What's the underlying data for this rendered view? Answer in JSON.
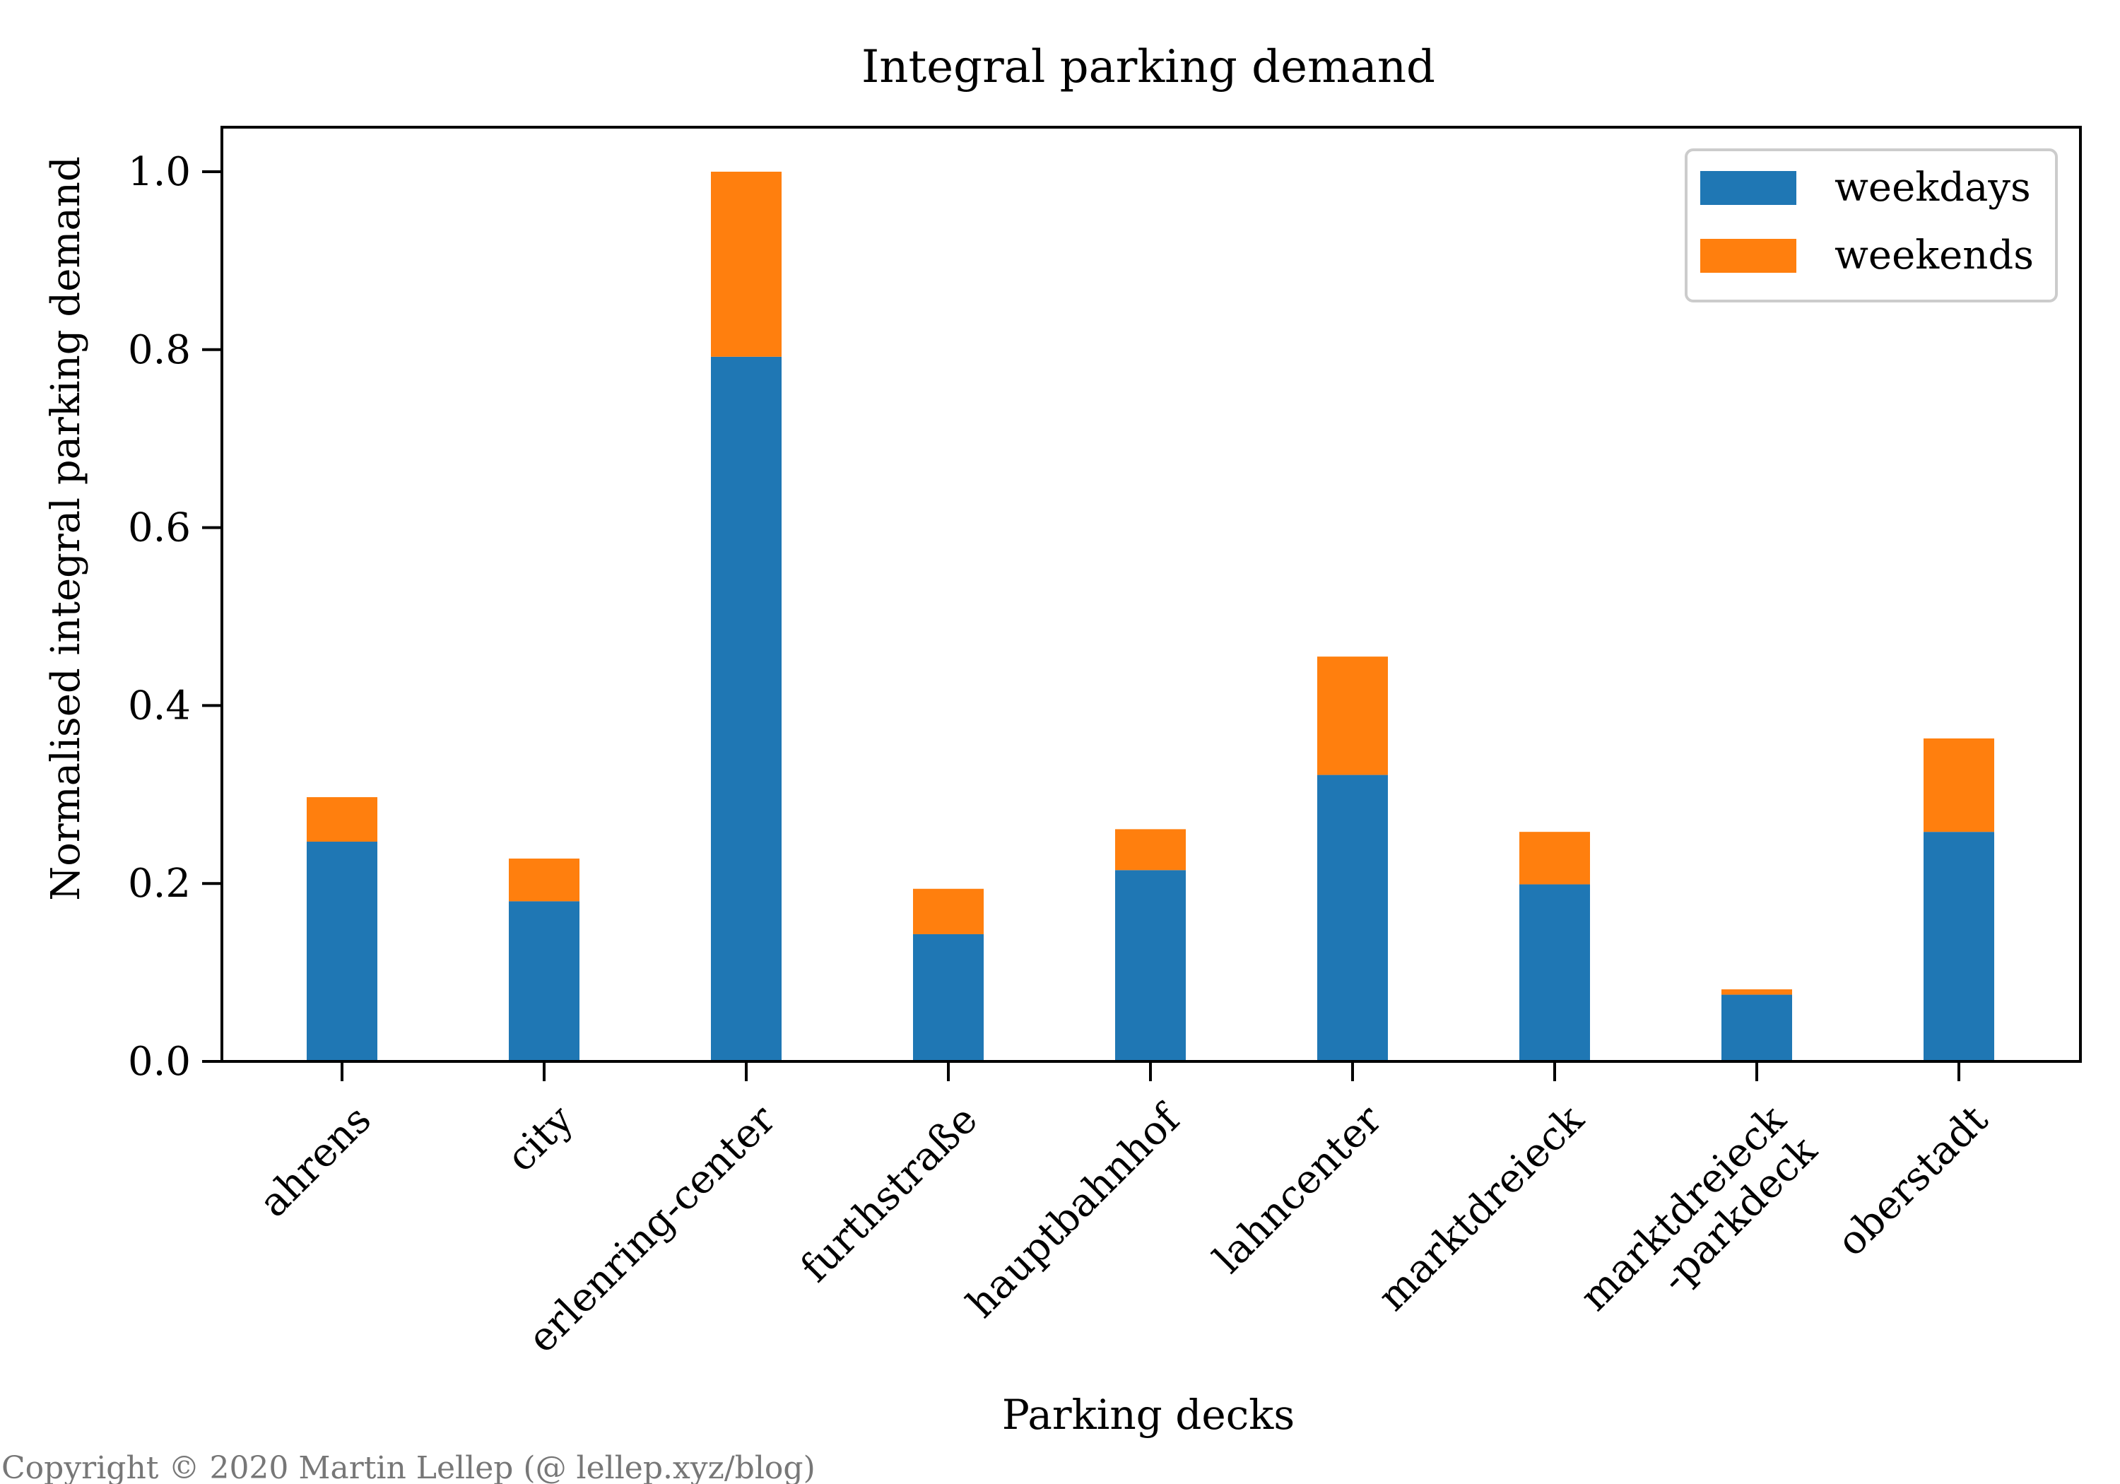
{
  "chart_data": {
    "type": "bar",
    "stacked": true,
    "title": "Integral parking demand",
    "xlabel": "Parking decks",
    "ylabel": "Normalised integral parking demand",
    "ylim": [
      0,
      1.05
    ],
    "yticks": [
      "0.0",
      "0.2",
      "0.4",
      "0.6",
      "0.8",
      "1.0"
    ],
    "categories": [
      "ahrens",
      "city",
      "erlenring-center",
      "furthstraße",
      "hauptbahnhof",
      "lahncenter",
      "marktdreieck",
      "marktdreieck\n-parkdeck",
      "oberstadt"
    ],
    "series": [
      {
        "name": "weekdays",
        "color": "#1f77b4",
        "values": [
          0.247,
          0.18,
          0.792,
          0.143,
          0.215,
          0.322,
          0.199,
          0.075,
          0.258
        ]
      },
      {
        "name": "weekends",
        "color": "#ff7f0e",
        "values": [
          0.05,
          0.048,
          0.208,
          0.051,
          0.046,
          0.133,
          0.059,
          0.006,
          0.105
        ]
      }
    ],
    "legend": "top-right",
    "grid": false
  },
  "copyright": "Copyright © 2020 Martin Lellep (@ lellep.xyz/blog)"
}
